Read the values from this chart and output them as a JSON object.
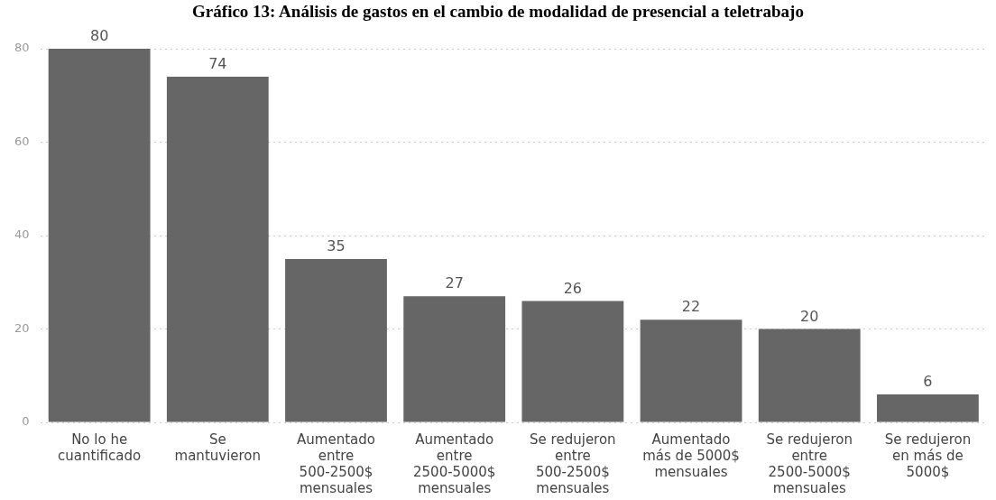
{
  "chart_data": {
    "type": "bar",
    "title": "Gráfico 13: Análisis de gastos en el cambio de modalidad de presencial a teletrabajo",
    "categories": [
      "No lo he cuantificado",
      "Se mantuvieron",
      "Aumentado entre 500-2500$ mensuales",
      "Aumentado entre 2500-5000$ mensuales",
      "Se redujeron entre 500-2500$ mensuales",
      "Aumentado más de 5000$ mensuales",
      "Se redujeron entre 2500-5000$ mensuales",
      "Se redujeron en más de 5000$"
    ],
    "values": [
      80,
      74,
      35,
      27,
      26,
      22,
      20,
      6
    ],
    "color": "#666666",
    "ylim": [
      0,
      80
    ],
    "yticks": [
      0,
      20,
      40,
      60,
      80
    ],
    "grid": "y",
    "data_labels": true,
    "legend": false
  }
}
